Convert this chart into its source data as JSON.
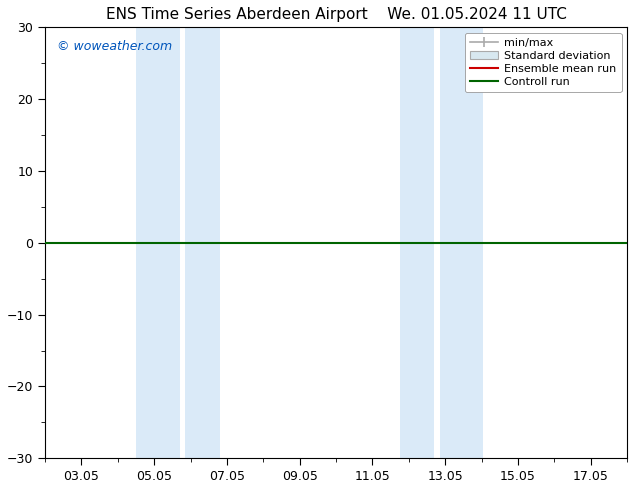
{
  "title_left": "ENS Time Series Aberdeen Airport",
  "title_right": "We. 01.05.2024 11 UTC",
  "watermark": "© woweather.com",
  "ylim": [
    -30,
    30
  ],
  "yticks": [
    -30,
    -20,
    -10,
    0,
    10,
    20,
    30
  ],
  "xtick_labels": [
    "03.05",
    "05.05",
    "07.05",
    "09.05",
    "11.05",
    "13.05",
    "15.05",
    "17.05"
  ],
  "xtick_positions": [
    2,
    4,
    6,
    8,
    10,
    12,
    14,
    16
  ],
  "xmin": 1,
  "xmax": 17,
  "shaded_bands": [
    {
      "xmin": 3.5,
      "xmax": 4.7,
      "color": "#daeaf8"
    },
    {
      "xmin": 4.85,
      "xmax": 5.8,
      "color": "#daeaf8"
    },
    {
      "xmin": 10.75,
      "xmax": 11.7,
      "color": "#daeaf8"
    },
    {
      "xmin": 11.85,
      "xmax": 13.05,
      "color": "#daeaf8"
    }
  ],
  "hline_y": 0,
  "hline_color": "#006400",
  "legend_entries": [
    {
      "label": "min/max",
      "color": "#aaaaaa",
      "type": "minmax"
    },
    {
      "label": "Standard deviation",
      "color": "#cccccc",
      "type": "fill"
    },
    {
      "label": "Ensemble mean run",
      "color": "#cc0000",
      "type": "line"
    },
    {
      "label": "Controll run",
      "color": "#006400",
      "type": "line"
    }
  ],
  "background_color": "#ffffff",
  "plot_bg_color": "#ffffff",
  "font_size_title": 11,
  "font_size_ticks": 9,
  "font_size_legend": 8,
  "font_size_watermark": 9,
  "watermark_color": "#0055bb"
}
